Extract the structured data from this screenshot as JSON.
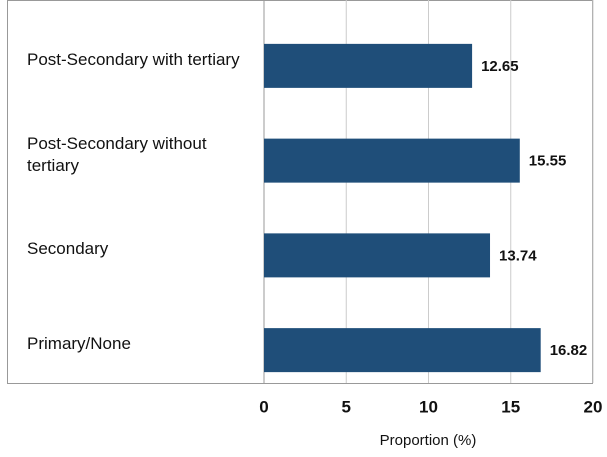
{
  "chart_data": {
    "type": "bar",
    "orientation": "horizontal",
    "categories": [
      "Post-Secondary with tertiary",
      "Post-Secondary without tertiary",
      "Secondary",
      "Primary/None"
    ],
    "values": [
      12.65,
      15.55,
      13.74,
      16.82
    ],
    "color": "#1f4e79",
    "xlabel": "Proportion (%)",
    "xlim": [
      0,
      20
    ],
    "xticks": [
      0,
      5,
      10,
      15,
      20
    ],
    "grid": true
  }
}
